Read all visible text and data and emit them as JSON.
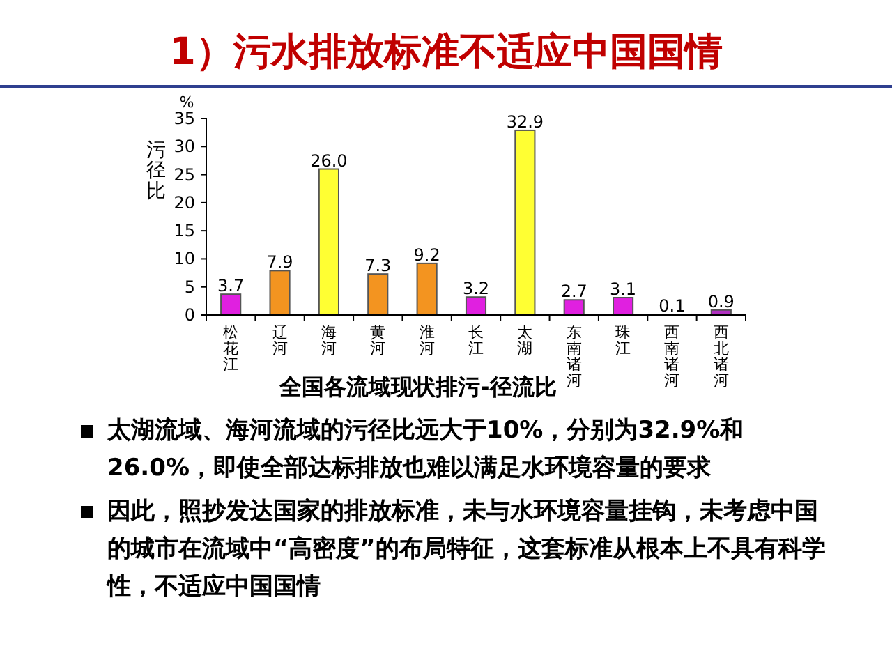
{
  "chart_data": {
    "type": "bar",
    "title": "1）污水排放标准不适应中国国情",
    "xlabel": "全国各流域现状排污-径流比",
    "ylabel": "污径比",
    "categories": [
      "松花江",
      "辽河",
      "海河",
      "黄河",
      "淮河",
      "长江",
      "太湖",
      "东南诸河",
      "珠江",
      "西南诸河",
      "西北诸河"
    ],
    "values": [
      3.7,
      7.9,
      26.0,
      7.3,
      9.2,
      3.2,
      32.9,
      2.7,
      3.1,
      0.1,
      0.9
    ],
    "value_labels": [
      "3.7",
      "7.9",
      "26.0",
      "7.3",
      "9.2",
      "3.2",
      "32.9",
      "2.7",
      "3.1",
      "0.1",
      "0.9"
    ],
    "colors": [
      "#e020e0",
      "#f39420",
      "#ffff33",
      "#f39420",
      "#f39420",
      "#e020e0",
      "#ffff33",
      "#e020e0",
      "#e020e0",
      "#e020e0",
      "#b030c0"
    ],
    "ylim": [
      0,
      35
    ],
    "yticks": [
      0,
      5,
      10,
      15,
      20,
      25,
      30,
      35
    ],
    "grid": false,
    "annotations": [
      "%",
      "太湖流域、海河流域的污径比远大于10%，分别为32.9%和26.0%，即使全部达标排放也难以满足水环境容量的要求",
      "因此，照抄发达国家的排放标准，未与水环境容量挂钩，未考虑中国的城市在流域中“高密度”的布局特征，这套标准从根本上不具有科学性，不适应中国国情"
    ]
  }
}
